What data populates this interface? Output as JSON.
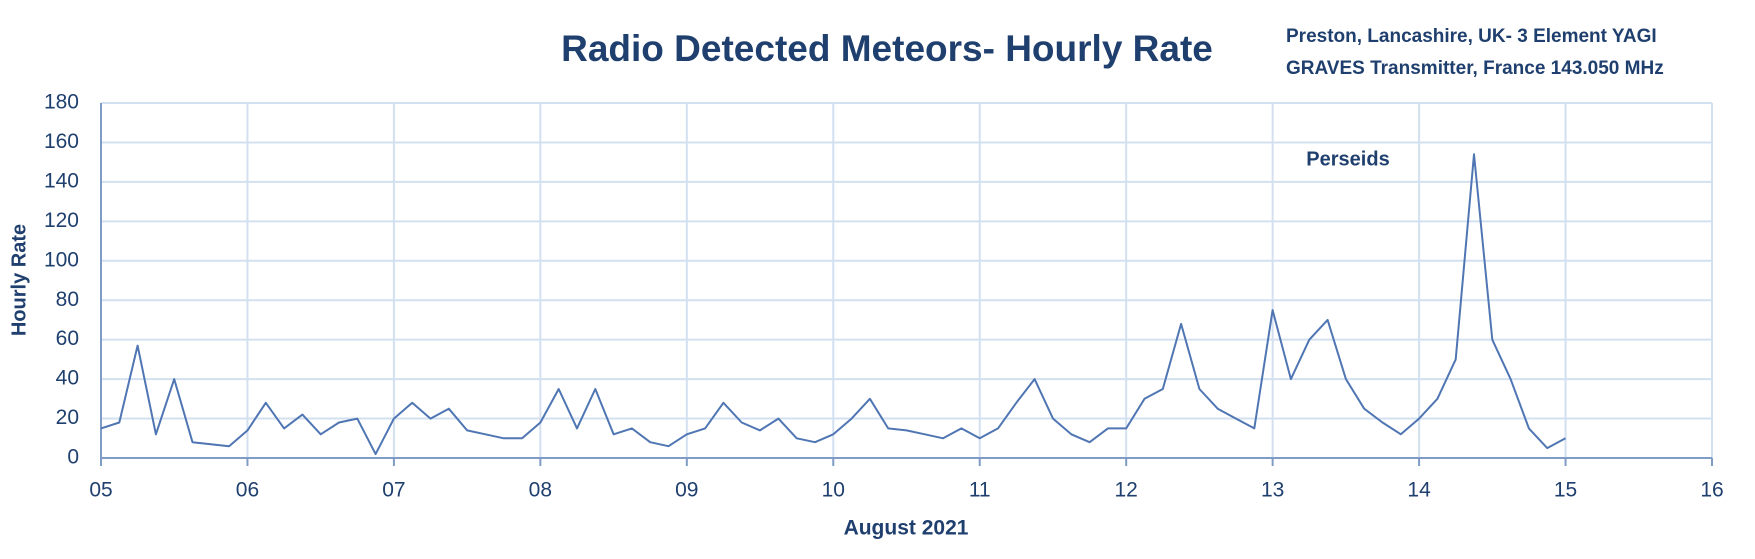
{
  "chart_data": {
    "type": "line",
    "title": "Radio Detected Meteors- Hourly Rate",
    "subtitle": [
      "Preston, Lancashire, UK-  3 Element YAGI",
      "GRAVES Transmitter, France 143.050 MHz"
    ],
    "annotation": "Perseids",
    "x_label": "August 2021",
    "y_label": "Hourly Rate",
    "color": "#4f76b3",
    "grid": true,
    "xlim": [
      5,
      16
    ],
    "ylim": [
      0,
      180
    ],
    "xticks": [
      {
        "value": 5,
        "label": "05"
      },
      {
        "value": 6,
        "label": "06"
      },
      {
        "value": 7,
        "label": "07"
      },
      {
        "value": 8,
        "label": "08"
      },
      {
        "value": 9,
        "label": "09"
      },
      10,
      11,
      12,
      13,
      14,
      15,
      16
    ],
    "yticks": [
      0,
      20,
      40,
      60,
      80,
      100,
      120,
      140,
      160,
      180
    ],
    "x": [
      5,
      5.125,
      5.25,
      5.375,
      5.5,
      5.625,
      5.75,
      5.875,
      6,
      6.125,
      6.25,
      6.375,
      6.5,
      6.625,
      6.75,
      6.875,
      7,
      7.125,
      7.25,
      7.375,
      7.5,
      7.625,
      7.75,
      7.875,
      8,
      8.125,
      8.25,
      8.375,
      8.5,
      8.625,
      8.75,
      8.875,
      9,
      9.125,
      9.25,
      9.375,
      9.5,
      9.625,
      9.75,
      9.875,
      10,
      10.125,
      10.25,
      10.375,
      10.5,
      10.625,
      10.75,
      10.875,
      11,
      11.125,
      11.25,
      11.375,
      11.5,
      11.625,
      11.75,
      11.875,
      12,
      12.125,
      12.25,
      12.375,
      12.5,
      12.625,
      12.75,
      12.875,
      13,
      13.125,
      13.25,
      13.375,
      13.5,
      13.625,
      13.75,
      13.875,
      14,
      14.125,
      14.25,
      14.375,
      14.5,
      14.625,
      14.75,
      14.875,
      15
    ],
    "values": [
      15,
      18,
      57,
      12,
      40,
      8,
      7,
      6,
      14,
      28,
      15,
      22,
      12,
      18,
      20,
      2,
      20,
      28,
      20,
      25,
      14,
      12,
      10,
      10,
      18,
      35,
      15,
      35,
      12,
      15,
      8,
      6,
      12,
      15,
      28,
      18,
      14,
      20,
      10,
      8,
      12,
      20,
      30,
      15,
      14,
      12,
      10,
      15,
      10,
      15,
      28,
      40,
      20,
      12,
      8,
      15,
      15,
      30,
      35,
      68,
      35,
      25,
      20,
      15,
      75,
      40,
      60,
      70,
      40,
      25,
      18,
      12,
      20,
      30,
      50,
      154,
      60,
      40,
      15,
      5,
      10
    ]
  }
}
